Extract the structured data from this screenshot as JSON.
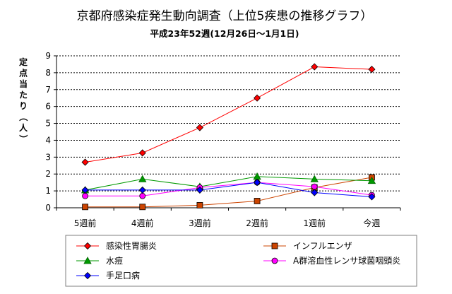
{
  "chart_data": {
    "type": "line",
    "title": "京都府感染症発生動向調査（上位5疾患の推移グラフ）",
    "subtitle": "平成23年52週(12月26日～1月1日)",
    "ylabel": "定点当たり（人）",
    "xlabel": "",
    "ylim": [
      0,
      9
    ],
    "yticks": [
      0,
      1,
      2,
      3,
      4,
      5,
      6,
      7,
      8,
      9
    ],
    "grid": true,
    "legend": "bottom",
    "categories": [
      "5週前",
      "4週前",
      "3週前",
      "2週前",
      "1週前",
      "今週"
    ],
    "series": [
      {
        "name": "感染性胃腸炎",
        "color": "#ff0000",
        "marker": "diamond",
        "values": [
          2.7,
          3.25,
          4.75,
          6.5,
          8.35,
          8.2
        ]
      },
      {
        "name": "インフルエンザ",
        "color": "#cc4400",
        "marker": "square",
        "values": [
          0.05,
          0.05,
          0.15,
          0.4,
          1.2,
          1.8
        ]
      },
      {
        "name": "水痘",
        "color": "#009900",
        "marker": "triangle",
        "values": [
          1.05,
          1.7,
          1.25,
          1.85,
          1.7,
          1.6
        ]
      },
      {
        "name": "A群溶血性レンサ球菌咽頭炎",
        "color": "#ff00ff",
        "marker": "circle",
        "values": [
          0.7,
          0.7,
          1.2,
          1.5,
          1.25,
          0.75
        ]
      },
      {
        "name": "手足口病",
        "color": "#0000ff",
        "marker": "diamond",
        "values": [
          1.05,
          1.05,
          1.05,
          1.5,
          0.9,
          0.65
        ]
      }
    ]
  }
}
